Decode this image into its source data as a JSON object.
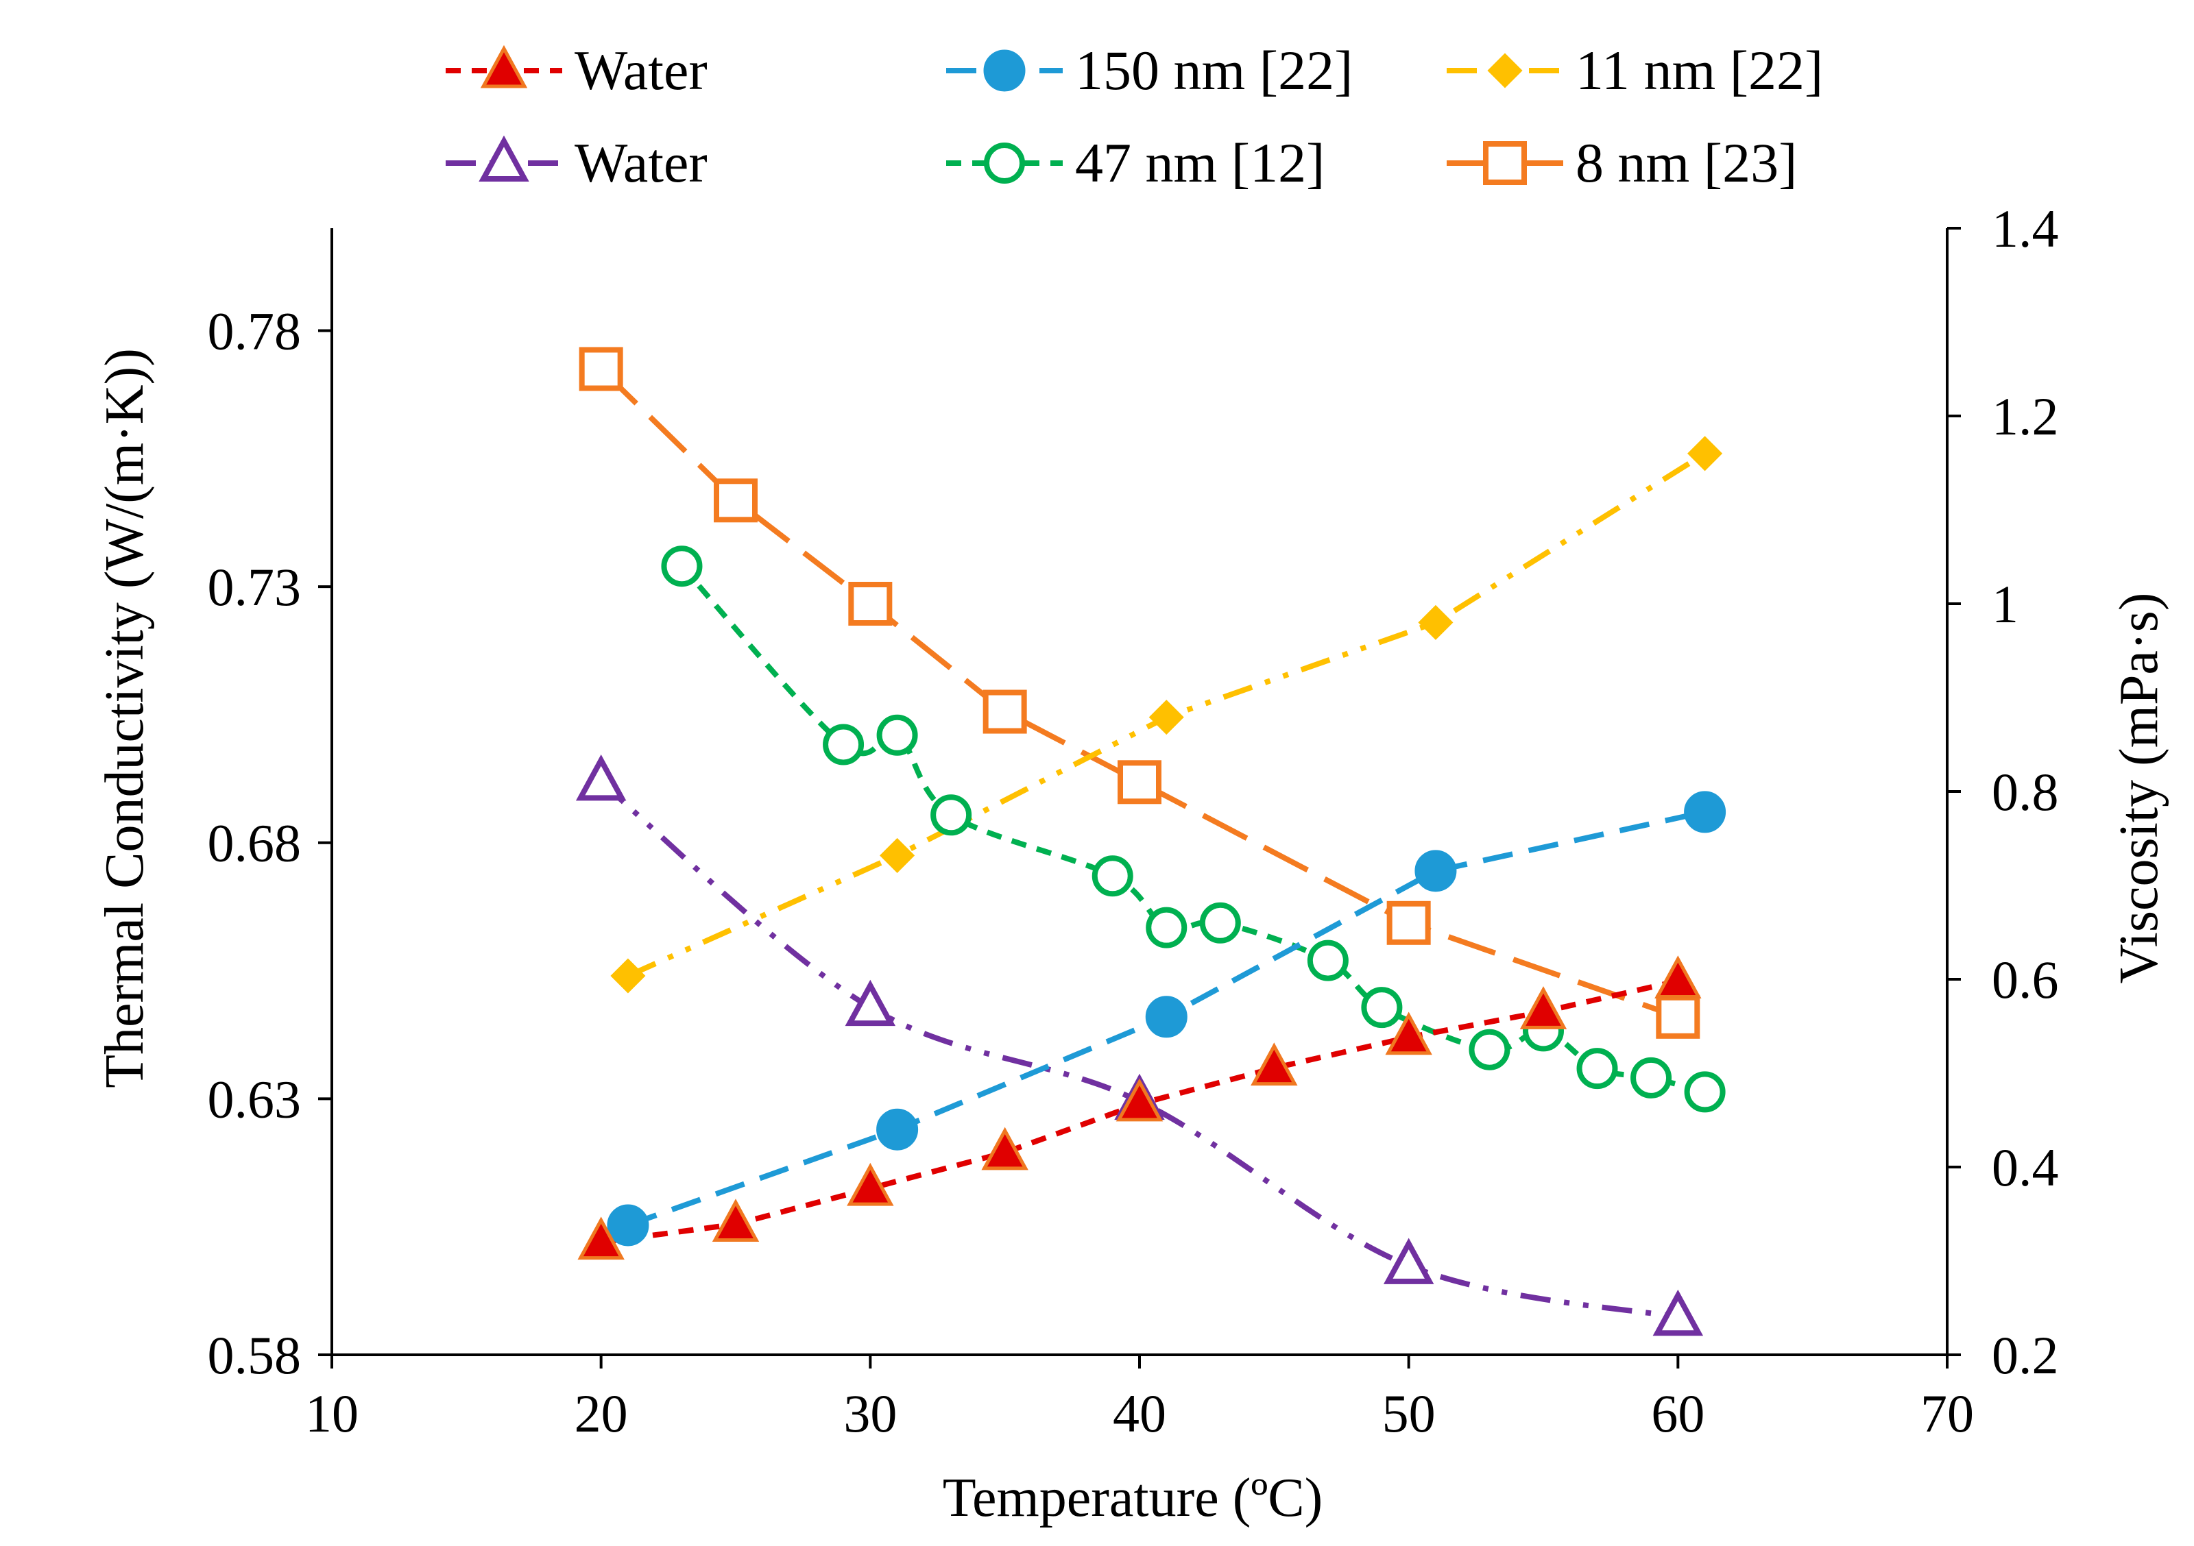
{
  "chart_data": {
    "type": "line",
    "title": "",
    "xlabel": "Temperature (ºC)",
    "ylabel_left": "Thermal Conductivity (W/(m·K))",
    "ylabel_right": "Viscosity (mPa·s)",
    "xlim": [
      10,
      70
    ],
    "ylim_left": [
      0.58,
      0.8
    ],
    "ylim_right": [
      0.2,
      1.4
    ],
    "x_ticks": [
      "10",
      "20",
      "30",
      "40",
      "50",
      "60",
      "70"
    ],
    "y_left_ticks": [
      "0.58",
      "0.63",
      "0.68",
      "0.73",
      "0.78"
    ],
    "y_right_ticks": [
      "0.2",
      "0.4",
      "0.6",
      "0.8",
      "1",
      "1.2",
      "1.4"
    ],
    "grid": false,
    "legend_position": "top",
    "series": [
      {
        "name": "Water",
        "axis": "left",
        "color": "#E00000",
        "marker": "filled-triangle",
        "marker_fill": "#E00000",
        "marker_edge": "#F07820",
        "dash": "short-dash",
        "smooth": false,
        "x": [
          20,
          25,
          30,
          35,
          40,
          45,
          50,
          55,
          60
        ],
        "y": [
          0.602,
          0.6055,
          0.6125,
          0.6195,
          0.629,
          0.636,
          0.642,
          0.647,
          0.653
        ]
      },
      {
        "name": "150 nm [22]",
        "axis": "left",
        "color": "#1E9AD6",
        "marker": "filled-circle",
        "marker_fill": "#1E9AD6",
        "marker_edge": "#1E9AD6",
        "dash": "dash",
        "smooth": false,
        "x": [
          21,
          31,
          41,
          51,
          61
        ],
        "y": [
          0.6053,
          0.624,
          0.646,
          0.6745,
          0.686
        ]
      },
      {
        "name": "11 nm [22]",
        "axis": "left",
        "color": "#FFC000",
        "marker": "filled-diamond",
        "marker_fill": "#FFC000",
        "marker_edge": "#FFC000",
        "dash": "dash-dot-dot",
        "smooth": false,
        "x": [
          21,
          31,
          41,
          51,
          61
        ],
        "y": [
          0.654,
          0.6775,
          0.7045,
          0.723,
          0.756
        ]
      },
      {
        "name": "Water",
        "axis": "right",
        "color": "#7030A0",
        "marker": "open-triangle",
        "marker_fill": "#ffffff",
        "marker_edge": "#7030A0",
        "dash": "dash-dot-dot",
        "smooth": true,
        "x": [
          20,
          30,
          40,
          50,
          60
        ],
        "y": [
          0.81,
          0.57,
          0.47,
          0.295,
          0.24
        ]
      },
      {
        "name": "47 nm [12]",
        "axis": "right",
        "color": "#00B050",
        "marker": "open-circle",
        "marker_fill": "#ffffff",
        "marker_edge": "#00B050",
        "dash": "short-dash",
        "smooth": true,
        "x": [
          23,
          29,
          31,
          33,
          39,
          41,
          43,
          47,
          49,
          53,
          55,
          57,
          59,
          61
        ],
        "y": [
          1.04,
          0.85,
          0.86,
          0.775,
          0.71,
          0.655,
          0.66,
          0.62,
          0.57,
          0.525,
          0.545,
          0.505,
          0.495,
          0.48
        ]
      },
      {
        "name": "8 nm [23]",
        "axis": "right",
        "color": "#F47B20",
        "marker": "open-square",
        "marker_fill": "#ffffff",
        "marker_edge": "#F47B20",
        "dash": "long-dash",
        "smooth": false,
        "x": [
          20,
          25,
          30,
          35,
          40,
          50,
          60
        ],
        "y": [
          1.25,
          1.11,
          1.0,
          0.885,
          0.81,
          0.66,
          0.56
        ]
      }
    ],
    "legend": [
      {
        "label": "Water",
        "series": 0
      },
      {
        "label": "150 nm [22]",
        "series": 1
      },
      {
        "label": "11 nm [22]",
        "series": 2
      },
      {
        "label": "Water",
        "series": 3
      },
      {
        "label": "47 nm [12]",
        "series": 4
      },
      {
        "label": "8 nm [23]",
        "series": 5
      }
    ]
  }
}
